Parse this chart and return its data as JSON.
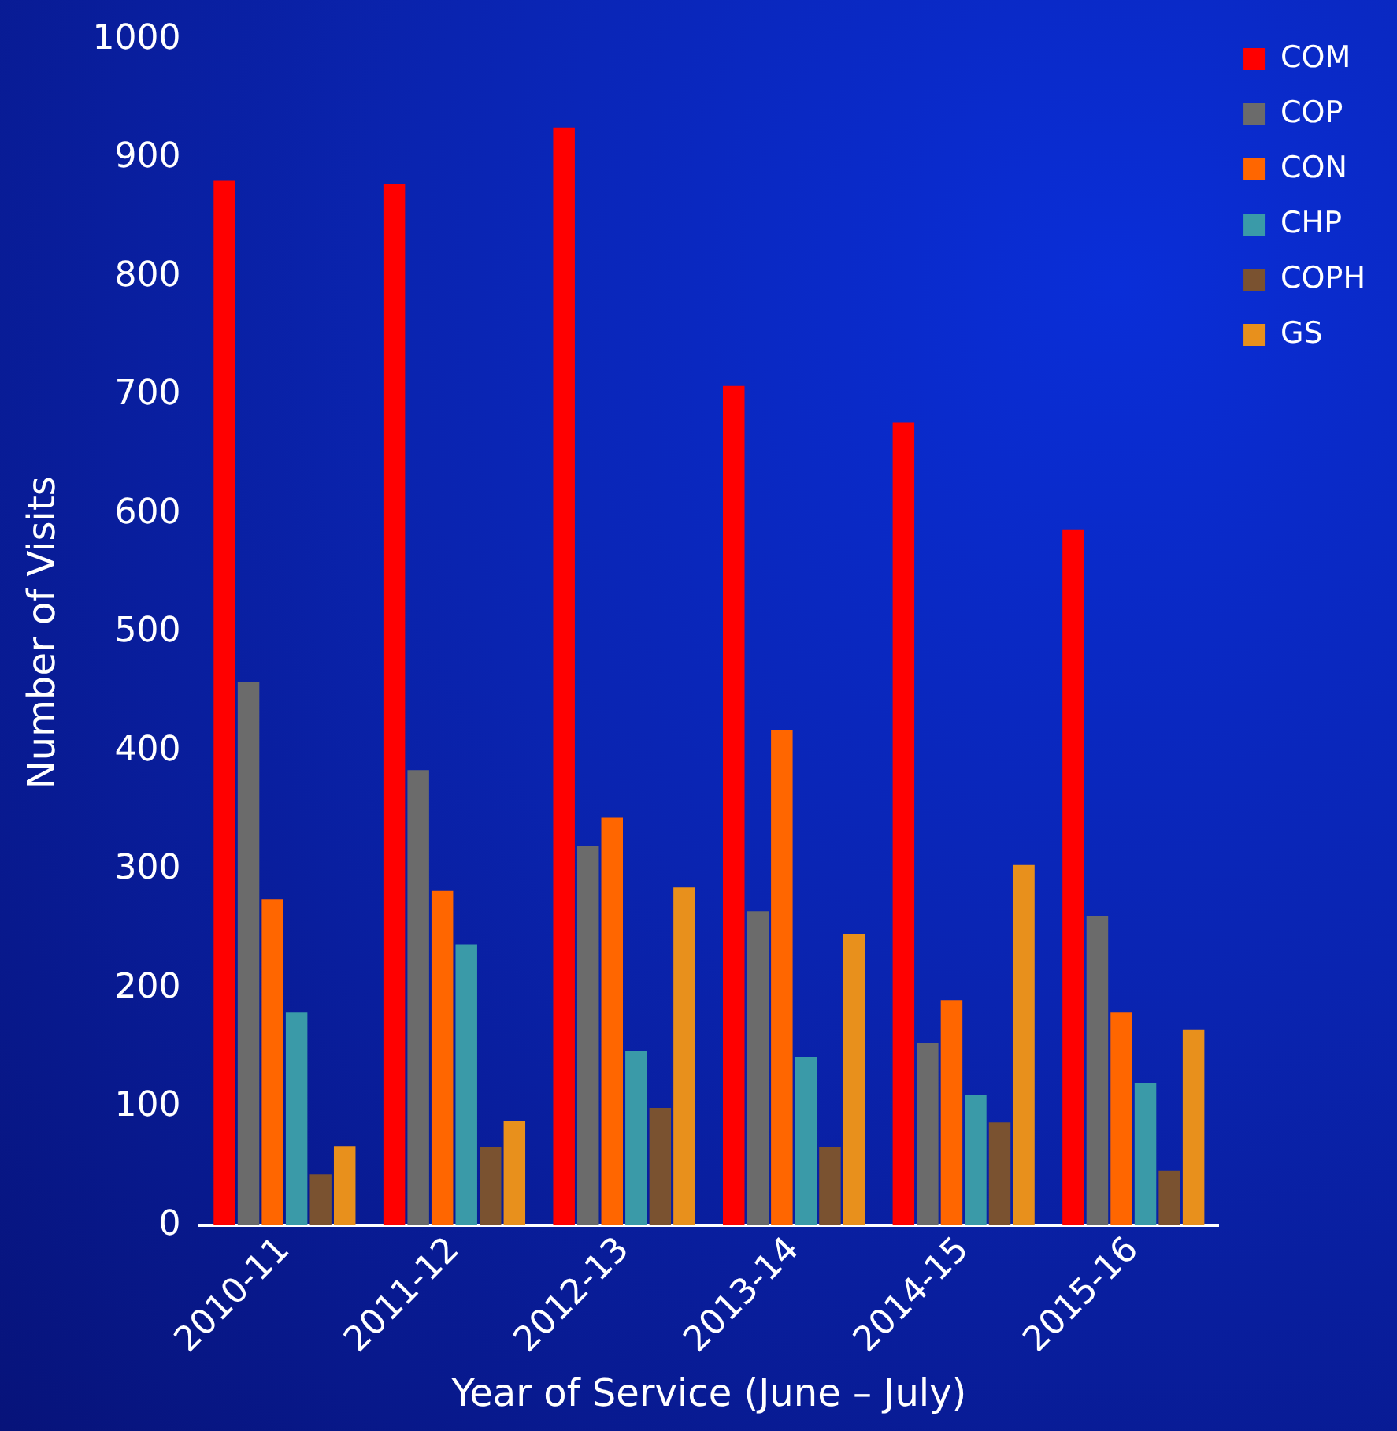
{
  "chart_data": {
    "type": "bar",
    "xlabel": "Year of Service (June – July)",
    "ylabel": "Number of Visits",
    "categories": [
      "2010-11",
      "2011-12",
      "2012-13",
      "2013-14",
      "2014-15",
      "2015-16"
    ],
    "series": [
      {
        "name": "COM",
        "color": "#ff0000",
        "values": [
          881,
          878,
          926,
          708,
          677,
          587
        ]
      },
      {
        "name": "COP",
        "color": "#6b6b6b",
        "values": [
          458,
          384,
          320,
          265,
          154,
          261
        ]
      },
      {
        "name": "CON",
        "color": "#ff6600",
        "values": [
          275,
          282,
          344,
          418,
          190,
          180
        ]
      },
      {
        "name": "CHP",
        "color": "#3a9aa8",
        "values": [
          180,
          237,
          147,
          142,
          110,
          120
        ]
      },
      {
        "name": "COPH",
        "color": "#7a5230",
        "values": [
          43,
          66,
          99,
          66,
          87,
          46
        ]
      },
      {
        "name": "GS",
        "color": "#e8901c",
        "values": [
          67,
          88,
          285,
          246,
          304,
          165
        ]
      }
    ],
    "ylim": [
      0,
      1000
    ],
    "yticks": [
      0,
      100,
      200,
      300,
      400,
      500,
      600,
      700,
      800,
      900,
      1000
    ],
    "grid": false,
    "legend": "top right"
  }
}
